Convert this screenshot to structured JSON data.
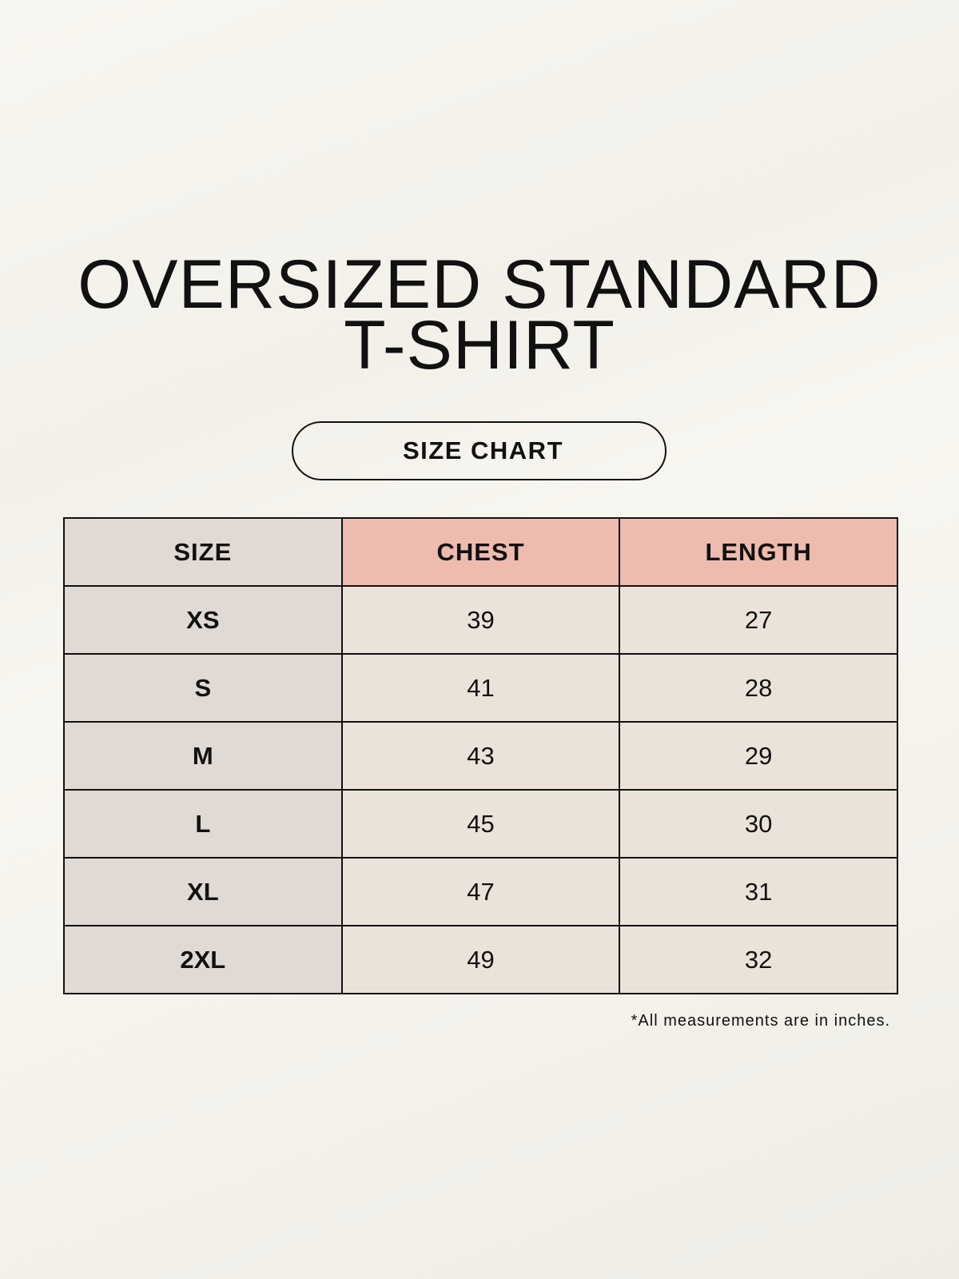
{
  "title": {
    "line1": "OVERSIZED STANDARD",
    "line2": "T-SHIRT"
  },
  "badge": "SIZE CHART",
  "table": {
    "headers": [
      "SIZE",
      "CHEST",
      "LENGTH"
    ],
    "rows": [
      [
        "XS",
        "39",
        "27"
      ],
      [
        "S",
        "41",
        "28"
      ],
      [
        "M",
        "43",
        "29"
      ],
      [
        "L",
        "45",
        "30"
      ],
      [
        "XL",
        "47",
        "31"
      ],
      [
        "2XL",
        "49",
        "32"
      ]
    ]
  },
  "footnote": "*All measurements are in inches.",
  "colors": {
    "size_column": "#e0d9d4",
    "header_accent": "#edbcaf",
    "data_cells": "#ebe3d9",
    "background": "#f8f6f0"
  }
}
